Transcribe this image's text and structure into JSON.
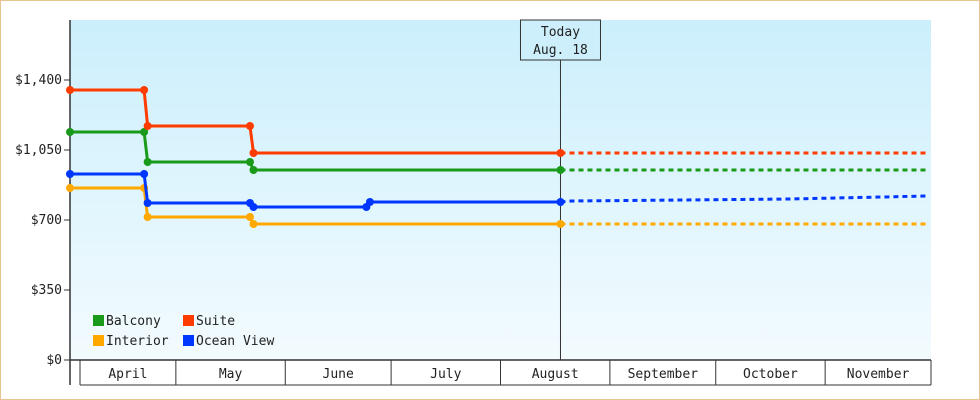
{
  "chart_data": {
    "type": "line",
    "title": "",
    "xlabel": "",
    "ylabel": "",
    "ylim": [
      0,
      1700
    ],
    "y_ticks": [
      {
        "value": 0,
        "label": "$0"
      },
      {
        "value": 350,
        "label": "$350"
      },
      {
        "value": 700,
        "label": "$700"
      },
      {
        "value": 1050,
        "label": "$1,050"
      },
      {
        "value": 1400,
        "label": "$1,400"
      }
    ],
    "x_range": [
      "2024-04-01",
      "2024-11-30"
    ],
    "months": [
      "April",
      "May",
      "June",
      "July",
      "August",
      "September",
      "October",
      "November"
    ],
    "today": {
      "date": "2024-08-18",
      "line1": "Today",
      "line2": "Aug. 18"
    },
    "grid": false,
    "legend_position": "bottom-left",
    "series": [
      {
        "name": "Balcony",
        "color": "#1a9a1a",
        "points": [
          {
            "date": "2024-04-01",
            "value": 1140
          },
          {
            "date": "2024-04-22",
            "value": 1140
          },
          {
            "date": "2024-04-23",
            "value": 990
          },
          {
            "date": "2024-05-22",
            "value": 990
          },
          {
            "date": "2024-05-23",
            "value": 950
          },
          {
            "date": "2024-08-18",
            "value": 950
          }
        ],
        "forecast": [
          {
            "date": "2024-08-18",
            "value": 950
          },
          {
            "date": "2024-11-30",
            "value": 950
          }
        ]
      },
      {
        "name": "Suite",
        "color": "#ff3c00",
        "points": [
          {
            "date": "2024-04-01",
            "value": 1350
          },
          {
            "date": "2024-04-22",
            "value": 1350
          },
          {
            "date": "2024-04-23",
            "value": 1170
          },
          {
            "date": "2024-05-22",
            "value": 1170
          },
          {
            "date": "2024-05-23",
            "value": 1035
          },
          {
            "date": "2024-08-18",
            "value": 1035
          }
        ],
        "forecast": [
          {
            "date": "2024-08-18",
            "value": 1035
          },
          {
            "date": "2024-11-30",
            "value": 1035
          }
        ]
      },
      {
        "name": "Interior",
        "color": "#ffa800",
        "points": [
          {
            "date": "2024-04-01",
            "value": 860
          },
          {
            "date": "2024-04-22",
            "value": 860
          },
          {
            "date": "2024-04-23",
            "value": 715
          },
          {
            "date": "2024-05-22",
            "value": 715
          },
          {
            "date": "2024-05-23",
            "value": 680
          },
          {
            "date": "2024-08-18",
            "value": 680
          }
        ],
        "forecast": [
          {
            "date": "2024-08-18",
            "value": 680
          },
          {
            "date": "2024-11-30",
            "value": 680
          }
        ]
      },
      {
        "name": "Ocean View",
        "color": "#0037ff",
        "points": [
          {
            "date": "2024-04-01",
            "value": 930
          },
          {
            "date": "2024-04-22",
            "value": 930
          },
          {
            "date": "2024-04-23",
            "value": 785
          },
          {
            "date": "2024-05-22",
            "value": 785
          },
          {
            "date": "2024-05-23",
            "value": 765
          },
          {
            "date": "2024-06-24",
            "value": 765
          },
          {
            "date": "2024-06-25",
            "value": 790
          },
          {
            "date": "2024-08-18",
            "value": 790
          }
        ],
        "forecast": [
          {
            "date": "2024-08-18",
            "value": 790
          },
          {
            "date": "2024-08-21",
            "value": 795
          },
          {
            "date": "2024-09-22",
            "value": 800
          },
          {
            "date": "2024-10-22",
            "value": 805
          },
          {
            "date": "2024-11-30",
            "value": 820
          }
        ]
      }
    ]
  }
}
